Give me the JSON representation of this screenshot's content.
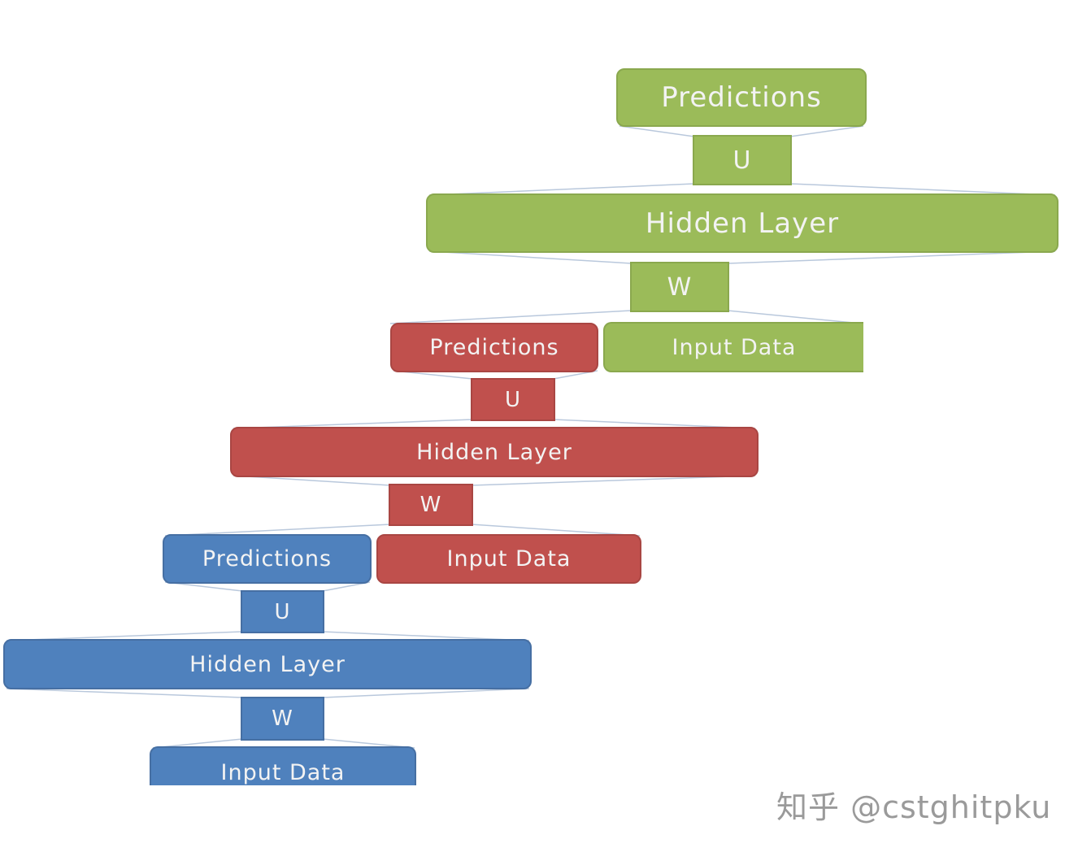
{
  "diagram": {
    "green": {
      "predictions": "Predictions",
      "u": "U",
      "hidden": "Hidden Layer",
      "w": "W",
      "input": "Input Data"
    },
    "red": {
      "predictions": "Predictions",
      "u": "U",
      "hidden": "Hidden Layer",
      "w": "W",
      "input": "Input Data"
    },
    "blue": {
      "predictions": "Predictions",
      "u": "U",
      "hidden": "Hidden Layer",
      "w": "W",
      "input": "Input Data"
    },
    "colors": {
      "green": "#9bbb59",
      "red": "#c0504d",
      "blue": "#4f81bd"
    }
  },
  "watermark": "知乎 @cstghitpku"
}
